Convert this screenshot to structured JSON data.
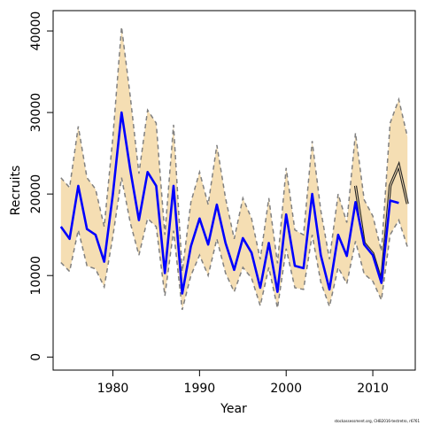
{
  "chart_data": {
    "type": "line",
    "xlabel": "Year",
    "ylabel": "Recruits",
    "xlim": [
      1973.1,
      2014.9
    ],
    "ylim": [
      -1600,
      42500
    ],
    "x_ticks": [
      1980,
      1990,
      2000,
      2010
    ],
    "y_ticks": [
      0,
      10000,
      20000,
      30000,
      40000
    ],
    "grid": false,
    "legend": "none",
    "colors": {
      "estimate": "#0000ff",
      "band_fill": "#f5deb3",
      "band_edge": "#808080",
      "retro": "#555555"
    },
    "years": [
      1974,
      1975,
      1976,
      1977,
      1978,
      1979,
      1980,
      1981,
      1982,
      1983,
      1984,
      1985,
      1986,
      1987,
      1988,
      1989,
      1990,
      1991,
      1992,
      1993,
      1994,
      1995,
      1996,
      1997,
      1998,
      1999,
      2000,
      2001,
      2002,
      2003,
      2004,
      2005,
      2006,
      2007,
      2008,
      2009,
      2010,
      2011,
      2012,
      2013,
      2014
    ],
    "series": [
      {
        "values": [
          16000,
          14500,
          21000,
          15700,
          15000,
          11700,
          20000,
          30000,
          23000,
          16800,
          22700,
          21000,
          10300,
          21000,
          7800,
          13600,
          17000,
          13800,
          18700,
          14000,
          10700,
          14600,
          12800,
          8500,
          14000,
          8000,
          17500,
          11200,
          10900,
          20000,
          12500,
          8300,
          15000,
          12400,
          19000,
          13800,
          12500,
          9100,
          19200,
          18900,
          null
        ]
      }
    ],
    "retro_values": [
      null,
      null,
      null,
      null,
      null,
      null,
      null,
      null,
      null,
      null,
      null,
      null,
      null,
      null,
      null,
      null,
      null,
      null,
      20000,
      null,
      null,
      null,
      null,
      null,
      null,
      null,
      null,
      null,
      null,
      null,
      null,
      null,
      null,
      null,
      21000,
      14000,
      12700,
      9300,
      21000,
      23500,
      18800
    ],
    "band_upper": [
      22000,
      20800,
      28300,
      22000,
      20600,
      16000,
      27000,
      40500,
      32000,
      22500,
      30300,
      28700,
      15000,
      28500,
      10500,
      19000,
      22700,
      18700,
      26000,
      19500,
      14500,
      19500,
      17000,
      12000,
      19500,
      11500,
      23200,
      15600,
      15000,
      26500,
      18000,
      12000,
      20000,
      16500,
      27500,
      19300,
      17300,
      13000,
      28700,
      31600,
      27000
    ],
    "band_lower": [
      11600,
      10500,
      15600,
      11200,
      10800,
      8600,
      14800,
      22000,
      16500,
      12500,
      17000,
      16000,
      7500,
      15500,
      5800,
      10000,
      12500,
      10000,
      14500,
      10300,
      8000,
      11000,
      9700,
      6300,
      11000,
      6000,
      13300,
      8500,
      8300,
      15000,
      9200,
      6200,
      11000,
      9000,
      14200,
      10200,
      9300,
      7000,
      15000,
      16800,
      13500
    ]
  },
  "footer": {
    "credit": "stockassessment.org, CHB2016-testretro, r6761"
  }
}
